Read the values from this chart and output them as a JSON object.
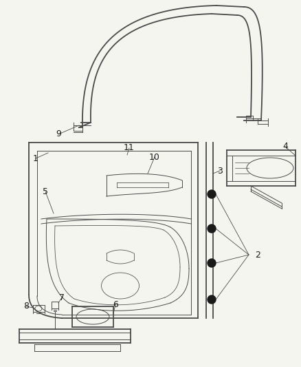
{
  "bg_color": "#f5f5f0",
  "line_color": "#4a4a4a",
  "label_color": "#1a1a1a",
  "lw_main": 1.3,
  "lw_thin": 0.7,
  "lw_thick": 1.8,
  "fig_w": 4.38,
  "fig_h": 5.33,
  "dpi": 100
}
